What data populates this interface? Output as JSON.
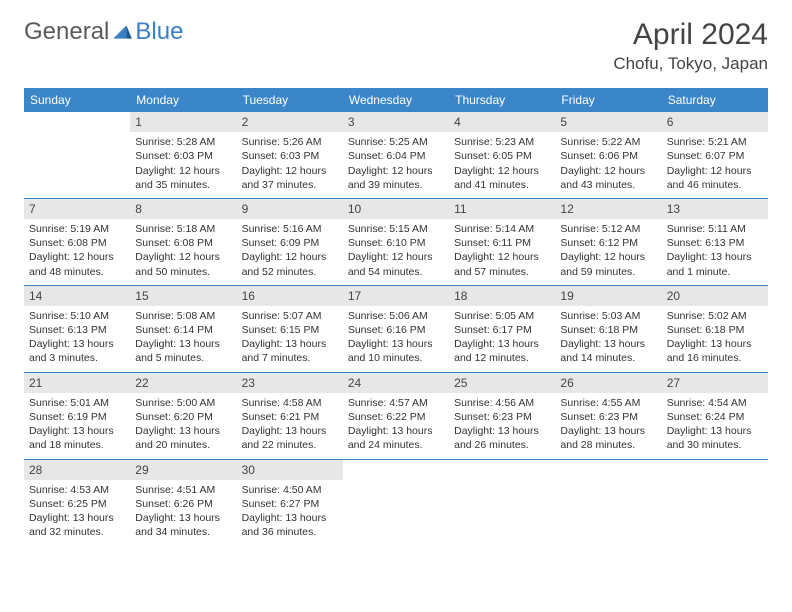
{
  "header": {
    "logo_text_1": "General",
    "logo_text_2": "Blue",
    "month_title": "April 2024",
    "location": "Chofu, Tokyo, Japan"
  },
  "colors": {
    "header_bg": "#3b86c8",
    "row_border": "#3b7fc4",
    "daynum_bg": "#e7e7e7",
    "text": "#333333",
    "title": "#444444"
  },
  "day_names": [
    "Sunday",
    "Monday",
    "Tuesday",
    "Wednesday",
    "Thursday",
    "Friday",
    "Saturday"
  ],
  "start_offset": 1,
  "days": [
    {
      "n": "1",
      "sunrise": "5:28 AM",
      "sunset": "6:03 PM",
      "daylight": "12 hours and 35 minutes."
    },
    {
      "n": "2",
      "sunrise": "5:26 AM",
      "sunset": "6:03 PM",
      "daylight": "12 hours and 37 minutes."
    },
    {
      "n": "3",
      "sunrise": "5:25 AM",
      "sunset": "6:04 PM",
      "daylight": "12 hours and 39 minutes."
    },
    {
      "n": "4",
      "sunrise": "5:23 AM",
      "sunset": "6:05 PM",
      "daylight": "12 hours and 41 minutes."
    },
    {
      "n": "5",
      "sunrise": "5:22 AM",
      "sunset": "6:06 PM",
      "daylight": "12 hours and 43 minutes."
    },
    {
      "n": "6",
      "sunrise": "5:21 AM",
      "sunset": "6:07 PM",
      "daylight": "12 hours and 46 minutes."
    },
    {
      "n": "7",
      "sunrise": "5:19 AM",
      "sunset": "6:08 PM",
      "daylight": "12 hours and 48 minutes."
    },
    {
      "n": "8",
      "sunrise": "5:18 AM",
      "sunset": "6:08 PM",
      "daylight": "12 hours and 50 minutes."
    },
    {
      "n": "9",
      "sunrise": "5:16 AM",
      "sunset": "6:09 PM",
      "daylight": "12 hours and 52 minutes."
    },
    {
      "n": "10",
      "sunrise": "5:15 AM",
      "sunset": "6:10 PM",
      "daylight": "12 hours and 54 minutes."
    },
    {
      "n": "11",
      "sunrise": "5:14 AM",
      "sunset": "6:11 PM",
      "daylight": "12 hours and 57 minutes."
    },
    {
      "n": "12",
      "sunrise": "5:12 AM",
      "sunset": "6:12 PM",
      "daylight": "12 hours and 59 minutes."
    },
    {
      "n": "13",
      "sunrise": "5:11 AM",
      "sunset": "6:13 PM",
      "daylight": "13 hours and 1 minute."
    },
    {
      "n": "14",
      "sunrise": "5:10 AM",
      "sunset": "6:13 PM",
      "daylight": "13 hours and 3 minutes."
    },
    {
      "n": "15",
      "sunrise": "5:08 AM",
      "sunset": "6:14 PM",
      "daylight": "13 hours and 5 minutes."
    },
    {
      "n": "16",
      "sunrise": "5:07 AM",
      "sunset": "6:15 PM",
      "daylight": "13 hours and 7 minutes."
    },
    {
      "n": "17",
      "sunrise": "5:06 AM",
      "sunset": "6:16 PM",
      "daylight": "13 hours and 10 minutes."
    },
    {
      "n": "18",
      "sunrise": "5:05 AM",
      "sunset": "6:17 PM",
      "daylight": "13 hours and 12 minutes."
    },
    {
      "n": "19",
      "sunrise": "5:03 AM",
      "sunset": "6:18 PM",
      "daylight": "13 hours and 14 minutes."
    },
    {
      "n": "20",
      "sunrise": "5:02 AM",
      "sunset": "6:18 PM",
      "daylight": "13 hours and 16 minutes."
    },
    {
      "n": "21",
      "sunrise": "5:01 AM",
      "sunset": "6:19 PM",
      "daylight": "13 hours and 18 minutes."
    },
    {
      "n": "22",
      "sunrise": "5:00 AM",
      "sunset": "6:20 PM",
      "daylight": "13 hours and 20 minutes."
    },
    {
      "n": "23",
      "sunrise": "4:58 AM",
      "sunset": "6:21 PM",
      "daylight": "13 hours and 22 minutes."
    },
    {
      "n": "24",
      "sunrise": "4:57 AM",
      "sunset": "6:22 PM",
      "daylight": "13 hours and 24 minutes."
    },
    {
      "n": "25",
      "sunrise": "4:56 AM",
      "sunset": "6:23 PM",
      "daylight": "13 hours and 26 minutes."
    },
    {
      "n": "26",
      "sunrise": "4:55 AM",
      "sunset": "6:23 PM",
      "daylight": "13 hours and 28 minutes."
    },
    {
      "n": "27",
      "sunrise": "4:54 AM",
      "sunset": "6:24 PM",
      "daylight": "13 hours and 30 minutes."
    },
    {
      "n": "28",
      "sunrise": "4:53 AM",
      "sunset": "6:25 PM",
      "daylight": "13 hours and 32 minutes."
    },
    {
      "n": "29",
      "sunrise": "4:51 AM",
      "sunset": "6:26 PM",
      "daylight": "13 hours and 34 minutes."
    },
    {
      "n": "30",
      "sunrise": "4:50 AM",
      "sunset": "6:27 PM",
      "daylight": "13 hours and 36 minutes."
    }
  ],
  "labels": {
    "sunrise": "Sunrise: ",
    "sunset": "Sunset: ",
    "daylight": "Daylight: "
  }
}
